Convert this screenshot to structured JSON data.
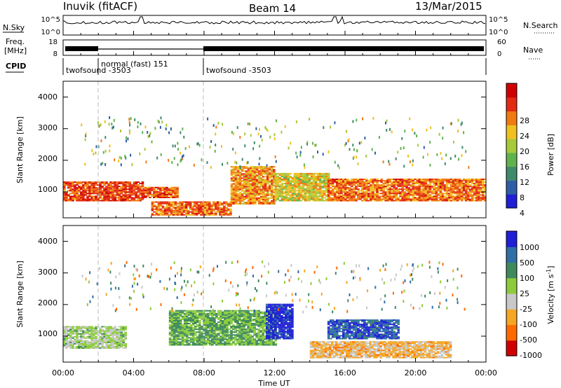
{
  "header": {
    "station": "Inuvik (fitACF)",
    "beam": "Beam 14",
    "date": "13/Mar/2015"
  },
  "strips": {
    "nsky_label": "N.Sky",
    "nsky_ticks": [
      "10^5",
      "10^0"
    ],
    "nsearch_label": "N.Search",
    "nsearch_ticks": [
      "10^5",
      "10^0"
    ],
    "freq_label": "Freq.",
    "freq_unit": "[MHz]",
    "freq_ticks": [
      "18",
      "8"
    ],
    "nave_label": "Nave",
    "nave_ticks": [
      "60",
      "0"
    ],
    "cpid_label": "CPID",
    "cpid_segments": [
      {
        "name": "twofsound -3503",
        "start_h": 0,
        "end_h": 2
      },
      {
        "name": "normal (fast) 151",
        "start_h": 2,
        "end_h": 8
      },
      {
        "name": "twofsound -3503",
        "start_h": 8,
        "end_h": 24
      }
    ]
  },
  "x_axis": {
    "label": "Time UT",
    "ticks": [
      "00:00",
      "04:00",
      "08:00",
      "12:00",
      "16:00",
      "20:00",
      "00:00"
    ],
    "range_hours": [
      0,
      24
    ]
  },
  "panels": {
    "power": {
      "ylabel": "Slant Range [km]",
      "yticks": [
        "1000",
        "2000",
        "3000",
        "4000"
      ],
      "cbar_label": "Power [dB]",
      "cbar_ticks": [
        "28",
        "24",
        "20",
        "16",
        "12",
        "8",
        "4"
      ]
    },
    "velocity": {
      "ylabel": "Slant Range [km]",
      "yticks": [
        "1000",
        "2000",
        "3000",
        "4000"
      ],
      "cbar_label": "Velocity [m s",
      "cbar_label_sup": "-1",
      "cbar_label_end": "]",
      "cbar_ticks": [
        "1000",
        "500",
        "100",
        "25",
        "-25",
        "-100",
        "-500",
        "-1000"
      ]
    }
  },
  "chart_data": [
    {
      "type": "heatmap",
      "title": "Power",
      "xlabel": "Time UT",
      "ylabel": "Slant Range [km]",
      "xlim": [
        0,
        24
      ],
      "ylim": [
        180,
        4500
      ],
      "colorbar": {
        "label": "Power [dB]",
        "range": [
          0,
          32
        ],
        "colors": [
          "#1f1fd6",
          "#2e5fa6",
          "#3f8a6a",
          "#5fb34c",
          "#a7c93a",
          "#f0c020",
          "#f07b10",
          "#e32a12",
          "#d00000"
        ]
      },
      "bands": [
        {
          "t0": 0.0,
          "t1": 4.5,
          "r0": 700,
          "r1": 1300,
          "power": 26
        },
        {
          "t0": 4.5,
          "t1": 6.5,
          "r0": 800,
          "r1": 1150,
          "power": 25
        },
        {
          "t0": 5.0,
          "t1": 9.5,
          "r0": 250,
          "r1": 700,
          "power": 24
        },
        {
          "t0": 9.5,
          "t1": 12.0,
          "r0": 600,
          "r1": 1800,
          "power": 22
        },
        {
          "t0": 12.0,
          "t1": 15.0,
          "r0": 700,
          "r1": 1600,
          "power": 18
        },
        {
          "t0": 15.0,
          "t1": 24.0,
          "r0": 700,
          "r1": 1400,
          "power": 24
        }
      ]
    },
    {
      "type": "heatmap",
      "title": "Velocity",
      "xlabel": "Time UT",
      "ylabel": "Slant Range [km]",
      "xlim": [
        0,
        24
      ],
      "ylim": [
        180,
        4500
      ],
      "colorbar": {
        "label": "Velocity [m s-1]",
        "range": [
          -1000,
          1000
        ],
        "colors": [
          "#d00000",
          "#ff6a00",
          "#f5a623",
          "#c8c8c8",
          "#8ccc3c",
          "#3f8a5c",
          "#2e6fa6",
          "#1f1fd6"
        ]
      },
      "bands": [
        {
          "t0": 0.0,
          "t1": 3.5,
          "r0": 600,
          "r1": 1300,
          "velocity": 60
        },
        {
          "t0": 6.0,
          "t1": 12.0,
          "r0": 700,
          "r1": 1800,
          "velocity": 250
        },
        {
          "t0": 11.5,
          "t1": 13.0,
          "r0": 900,
          "r1": 2000,
          "velocity": 900
        },
        {
          "t0": 15.0,
          "t1": 19.0,
          "r0": 900,
          "r1": 1500,
          "velocity": 700
        },
        {
          "t0": 14.0,
          "t1": 22.0,
          "r0": 300,
          "r1": 800,
          "velocity": -300
        }
      ]
    }
  ]
}
